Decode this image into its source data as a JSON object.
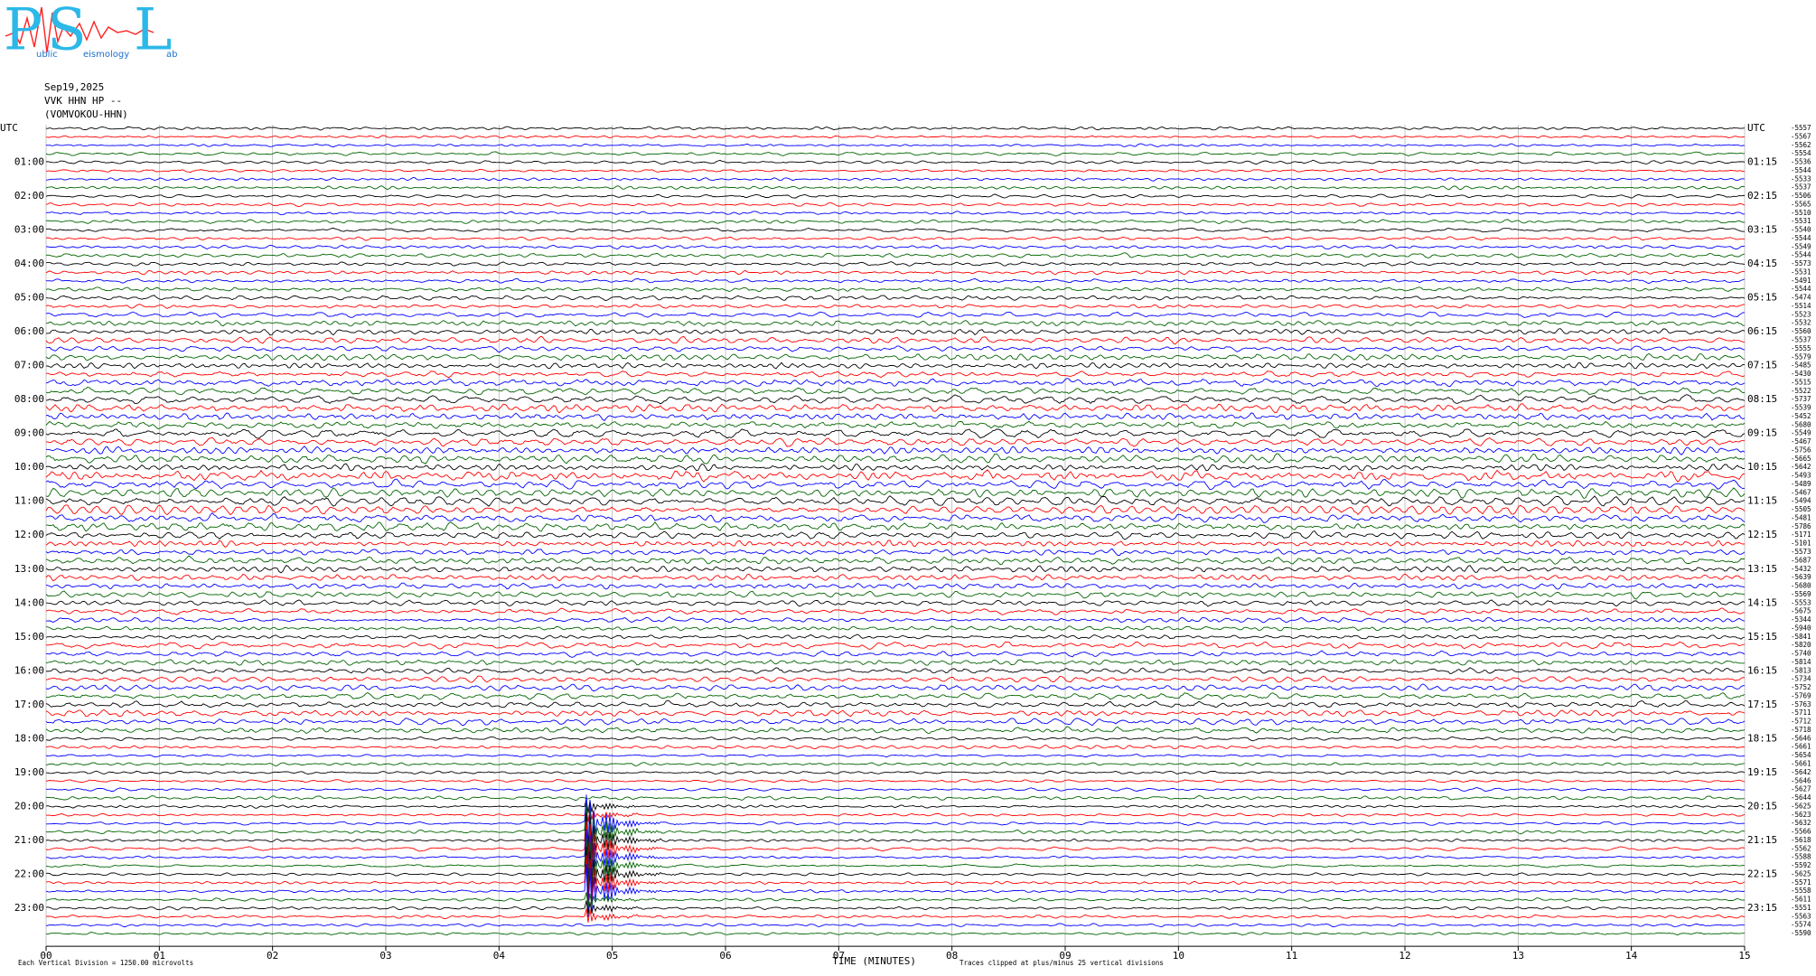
{
  "chart_data": {
    "type": "helicorder",
    "logo": {
      "letters": [
        "P",
        "S",
        "L"
      ],
      "words": [
        "ublic",
        "eismology",
        "ab"
      ]
    },
    "date": "Sep19,2025",
    "station": "VVK HHN HP --",
    "channel": "(VOMVOKOU-HHN)",
    "xlabel": "TIME (MINUTES)",
    "scale_note": "Each Vertical Division = 1250.00 microvolts",
    "clip_note": "Traces clipped at plus/minus 25 vertical divisions",
    "xlim": [
      0,
      15
    ],
    "xticks": [
      {
        "value": 0,
        "label": "00"
      },
      {
        "value": 1,
        "label": "01"
      },
      {
        "value": 2,
        "label": "02"
      },
      {
        "value": 3,
        "label": "03"
      },
      {
        "value": 4,
        "label": "04"
      },
      {
        "value": 5,
        "label": "05"
      },
      {
        "value": 6,
        "label": "06"
      },
      {
        "value": 7,
        "label": "07"
      },
      {
        "value": 8,
        "label": "08"
      },
      {
        "value": 9,
        "label": "09"
      },
      {
        "value": 10,
        "label": "10"
      },
      {
        "value": 11,
        "label": "11"
      },
      {
        "value": 12,
        "label": "12"
      },
      {
        "value": 13,
        "label": "13"
      },
      {
        "value": 14,
        "label": "14"
      },
      {
        "value": 15,
        "label": "15"
      }
    ],
    "grid": true,
    "colors": [
      "#000000",
      "#ff0000",
      "#0000ff",
      "#006400"
    ],
    "left_labels": [
      "UTC",
      "01:00",
      "02:00",
      "03:00",
      "04:00",
      "05:00",
      "06:00",
      "07:00",
      "08:00",
      "09:00",
      "10:00",
      "11:00",
      "12:00",
      "13:00",
      "14:00",
      "15:00",
      "16:00",
      "17:00",
      "18:00",
      "19:00",
      "20:00",
      "21:00",
      "22:00",
      "23:00"
    ],
    "right_labels": [
      "UTC",
      "01:15",
      "02:15",
      "03:15",
      "04:15",
      "05:15",
      "06:15",
      "07:15",
      "08:15",
      "09:15",
      "10:15",
      "11:15",
      "12:15",
      "13:15",
      "14:15",
      "15:15",
      "16:15",
      "17:15",
      "18:15",
      "19:15",
      "20:15",
      "21:15",
      "22:15",
      "23:15"
    ],
    "offsets": [
      -5557,
      -5567,
      -5562,
      -5554,
      -5536,
      -5544,
      -5533,
      -5537,
      -5506,
      -5565,
      -5510,
      -5531,
      -5540,
      -5544,
      -5549,
      -5544,
      -5573,
      -5531,
      -5491,
      -5544,
      -5474,
      -5514,
      -5523,
      -5532,
      -5560,
      -5537,
      -5555,
      -5579,
      -5485,
      -5430,
      -5515,
      -5522,
      -5737,
      -5539,
      -5452,
      -5680,
      -5549,
      -5467,
      -5756,
      -5665,
      -5642,
      -5493,
      -5489,
      -5467,
      -5494,
      -5505,
      -5481,
      -5786,
      -5171,
      -5101,
      -5573,
      -5687,
      -5432,
      -5639,
      -5680,
      -5569,
      -5553,
      -5675,
      -5344,
      -5940,
      -5841,
      -5820,
      -5740,
      -5814,
      -5813,
      -5734,
      -5752,
      -5769,
      -5763,
      -5711,
      -5712,
      -5718,
      -5646,
      -5661,
      -5654,
      -5661,
      -5642,
      -5646,
      -5627,
      -5644,
      -5625,
      -5623,
      -5632,
      -5566,
      -5618,
      -5562,
      -5588,
      -5592,
      -5625,
      -5571,
      -5558,
      -5611,
      -5551,
      -5563,
      -5574,
      -5590
    ]
  }
}
